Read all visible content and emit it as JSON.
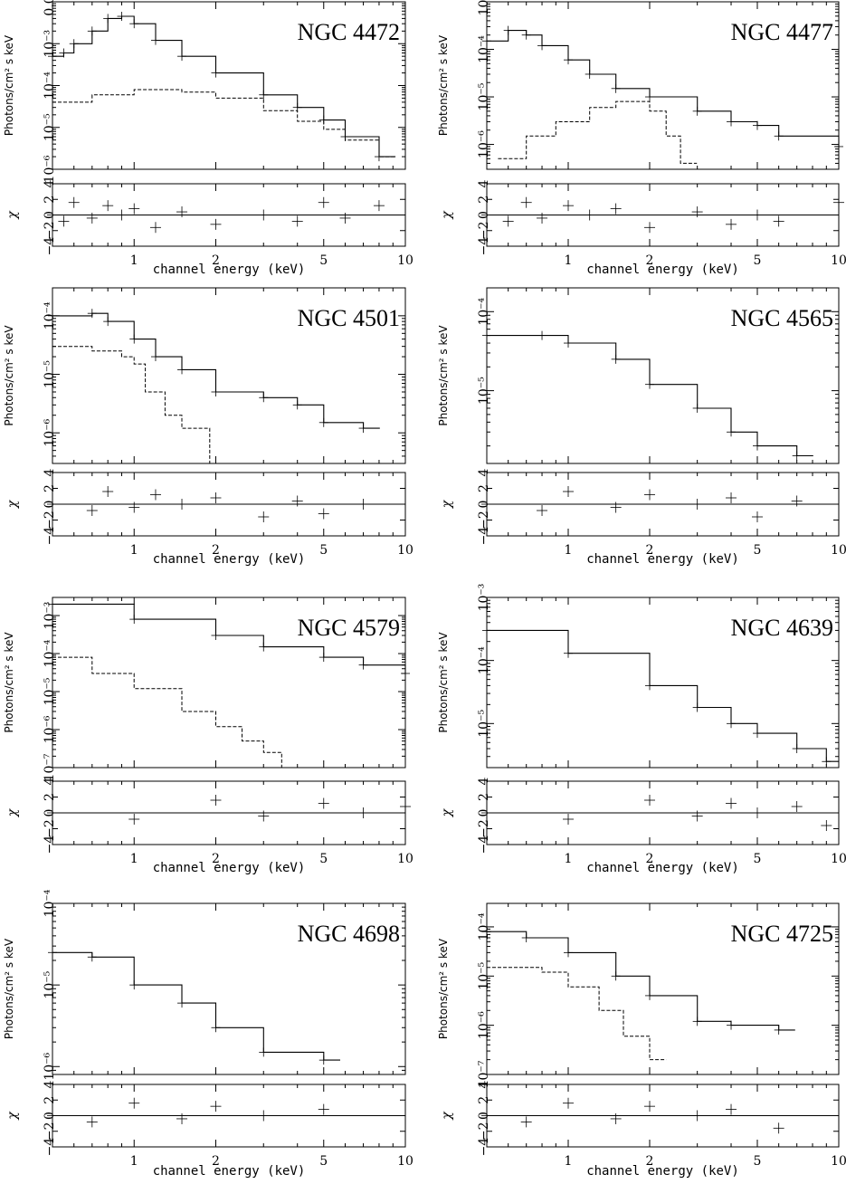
{
  "figure": {
    "xlabel": "channel energy (keV)",
    "ylabel": "Photons/cm² s keV",
    "resid_label": "χ",
    "x_ticks": [
      "1",
      "2",
      "5",
      "10"
    ],
    "resid_ticks": [
      "−4",
      "−2",
      "0",
      "2",
      "4"
    ]
  },
  "chart_data": [
    {
      "type": "line",
      "title": "NGC 4472",
      "x_scale": "log",
      "y_scale": "log",
      "xlim": [
        0.5,
        10
      ],
      "ylim": [
        1e-06,
        0.01
      ],
      "y_ticks": [
        "0.01",
        "10⁻³",
        "10⁻⁴",
        "10⁻⁵",
        "10⁻⁶"
      ],
      "resid_ylim": [
        -4,
        4
      ],
      "series": [
        {
          "values": [
            [
              0.5,
              0.0005
            ],
            [
              0.55,
              0.0006
            ],
            [
              0.6,
              0.001
            ],
            [
              0.7,
              0.002
            ],
            [
              0.8,
              0.004
            ],
            [
              0.9,
              0.0045
            ],
            [
              1.0,
              0.003
            ],
            [
              1.2,
              0.0012
            ],
            [
              1.5,
              0.0005
            ],
            [
              2.0,
              0.0002
            ],
            [
              3.0,
              6e-05
            ],
            [
              4.0,
              3e-05
            ],
            [
              5.0,
              1.5e-05
            ],
            [
              6.0,
              6e-06
            ],
            [
              8.0,
              2e-06
            ]
          ]
        },
        {
          "values": [
            [
              0.5,
              4e-05
            ],
            [
              0.7,
              6e-05
            ],
            [
              1.0,
              8e-05
            ],
            [
              1.5,
              7e-05
            ],
            [
              2.0,
              5e-05
            ],
            [
              3.0,
              2.5e-05
            ],
            [
              4.0,
              1.4e-05
            ],
            [
              5.0,
              9e-06
            ],
            [
              6.0,
              5e-06
            ],
            [
              8.0,
              2e-06
            ]
          ]
        }
      ]
    },
    {
      "type": "line",
      "title": "NGC 4477",
      "x_scale": "log",
      "y_scale": "log",
      "xlim": [
        0.5,
        10
      ],
      "ylim": [
        3e-07,
        0.001
      ],
      "y_ticks": [
        "10⁻³",
        "10⁻⁴",
        "10⁻⁵",
        "10⁻⁶"
      ],
      "resid_ylim": [
        -4,
        4
      ],
      "series": [
        {
          "values": [
            [
              0.5,
              0.00015
            ],
            [
              0.6,
              0.00025
            ],
            [
              0.7,
              0.0002
            ],
            [
              0.8,
              0.00012
            ],
            [
              1.0,
              6e-05
            ],
            [
              1.2,
              3e-05
            ],
            [
              1.5,
              1.5e-05
            ],
            [
              2.0,
              1e-05
            ],
            [
              3.0,
              5e-06
            ],
            [
              4.0,
              3e-06
            ],
            [
              5.0,
              2.5e-06
            ],
            [
              6.0,
              1.5e-06
            ],
            [
              10.0,
              9e-07
            ]
          ]
        },
        {
          "values": [
            [
              0.55,
              5e-07
            ],
            [
              0.7,
              1.5e-06
            ],
            [
              0.9,
              3e-06
            ],
            [
              1.2,
              6e-06
            ],
            [
              1.5,
              8e-06
            ],
            [
              1.8,
              8e-06
            ],
            [
              2.0,
              5e-06
            ],
            [
              2.3,
              1.5e-06
            ],
            [
              2.6,
              4e-07
            ]
          ]
        }
      ]
    },
    {
      "type": "line",
      "title": "NGC 4501",
      "x_scale": "log",
      "y_scale": "log",
      "xlim": [
        0.5,
        10
      ],
      "ylim": [
        3e-07,
        0.0003
      ],
      "y_ticks": [
        "10⁻⁴",
        "10⁻⁵",
        "10⁻⁶"
      ],
      "resid_ylim": [
        -4,
        4
      ],
      "series": [
        {
          "values": [
            [
              0.5,
              0.0001
            ],
            [
              0.7,
              0.00011
            ],
            [
              0.8,
              8e-05
            ],
            [
              1.0,
              4e-05
            ],
            [
              1.2,
              2e-05
            ],
            [
              1.5,
              1.2e-05
            ],
            [
              2.0,
              5e-06
            ],
            [
              3.0,
              4e-06
            ],
            [
              4.0,
              3e-06
            ],
            [
              5.0,
              1.5e-06
            ],
            [
              7.0,
              1.2e-06
            ]
          ]
        },
        {
          "values": [
            [
              0.5,
              3e-05
            ],
            [
              0.7,
              2.5e-05
            ],
            [
              0.9,
              2e-05
            ],
            [
              1.0,
              1.5e-05
            ],
            [
              1.1,
              5e-06
            ],
            [
              1.3,
              2e-06
            ],
            [
              1.5,
              1.2e-06
            ],
            [
              1.9,
              3e-07
            ]
          ]
        }
      ]
    },
    {
      "type": "line",
      "title": "NGC 4565",
      "x_scale": "log",
      "y_scale": "log",
      "xlim": [
        0.5,
        10
      ],
      "ylim": [
        1.2e-06,
        0.0002
      ],
      "y_ticks": [
        "10⁻⁴",
        "10⁻⁵"
      ],
      "resid_ylim": [
        -4,
        4
      ],
      "series": [
        {
          "values": [
            [
              0.5,
              5e-05
            ],
            [
              0.8,
              5e-05
            ],
            [
              1.0,
              4e-05
            ],
            [
              1.5,
              2.5e-05
            ],
            [
              2.0,
              1.2e-05
            ],
            [
              3.0,
              6e-06
            ],
            [
              4.0,
              3e-06
            ],
            [
              5.0,
              2e-06
            ],
            [
              7.0,
              1.5e-06
            ]
          ]
        }
      ]
    },
    {
      "type": "line",
      "title": "NGC 4579",
      "x_scale": "log",
      "y_scale": "log",
      "xlim": [
        0.5,
        10
      ],
      "ylim": [
        1e-07,
        0.003
      ],
      "y_ticks": [
        "10⁻³",
        "10⁻⁴",
        "10⁻⁵",
        "10⁻⁶",
        "10⁻⁷"
      ],
      "resid_ylim": [
        -4,
        4
      ],
      "series": [
        {
          "values": [
            [
              0.5,
              0.002
            ],
            [
              1.0,
              0.0008
            ],
            [
              2.0,
              0.0003
            ],
            [
              3.0,
              0.00015
            ],
            [
              5.0,
              8e-05
            ],
            [
              7.0,
              5e-05
            ],
            [
              10.0,
              3e-05
            ]
          ]
        },
        {
          "values": [
            [
              0.5,
              8e-05
            ],
            [
              0.7,
              3e-05
            ],
            [
              1.0,
              1.2e-05
            ],
            [
              1.5,
              3e-06
            ],
            [
              2.0,
              1.2e-06
            ],
            [
              2.5,
              5e-07
            ],
            [
              3.0,
              2.5e-07
            ],
            [
              3.5,
              1e-07
            ]
          ]
        }
      ]
    },
    {
      "type": "line",
      "title": "NGC 4639",
      "x_scale": "log",
      "y_scale": "log",
      "xlim": [
        0.5,
        10
      ],
      "ylim": [
        2e-06,
        0.001
      ],
      "y_ticks": [
        "10⁻³",
        "10⁻⁴",
        "10⁻⁵"
      ],
      "resid_ylim": [
        -4,
        4
      ],
      "series": [
        {
          "values": [
            [
              0.5,
              0.0003
            ],
            [
              1.0,
              0.00013
            ],
            [
              2.0,
              4e-05
            ],
            [
              3.0,
              1.8e-05
            ],
            [
              4.0,
              1e-05
            ],
            [
              5.0,
              7e-06
            ],
            [
              7.0,
              4e-06
            ],
            [
              9.0,
              2.5e-06
            ]
          ]
        }
      ]
    },
    {
      "type": "line",
      "title": "NGC 4698",
      "x_scale": "log",
      "y_scale": "log",
      "xlim": [
        0.5,
        10
      ],
      "ylim": [
        8e-07,
        0.0001
      ],
      "y_ticks": [
        "10⁻⁴",
        "10⁻⁵",
        "10⁻⁶"
      ],
      "resid_ylim": [
        -4,
        4
      ],
      "series": [
        {
          "values": [
            [
              0.5,
              2.5e-05
            ],
            [
              0.7,
              2.2e-05
            ],
            [
              1.0,
              1e-05
            ],
            [
              1.5,
              6e-06
            ],
            [
              2.0,
              3e-06
            ],
            [
              3.0,
              1.5e-06
            ],
            [
              5.0,
              1.2e-06
            ]
          ]
        }
      ]
    },
    {
      "type": "line",
      "title": "NGC 4725",
      "x_scale": "log",
      "y_scale": "log",
      "xlim": [
        0.5,
        10
      ],
      "ylim": [
        1e-07,
        0.0003
      ],
      "y_ticks": [
        "10⁻⁴",
        "10⁻⁵",
        "10⁻⁶",
        "10⁻⁷"
      ],
      "resid_ylim": [
        -4,
        4
      ],
      "series": [
        {
          "values": [
            [
              0.5,
              8e-05
            ],
            [
              0.7,
              6e-05
            ],
            [
              1.0,
              3e-05
            ],
            [
              1.5,
              1e-05
            ],
            [
              2.0,
              4e-06
            ],
            [
              3.0,
              1.2e-06
            ],
            [
              4.0,
              1e-06
            ],
            [
              6.0,
              8e-07
            ]
          ]
        },
        {
          "values": [
            [
              0.5,
              1.5e-05
            ],
            [
              0.8,
              1.2e-05
            ],
            [
              1.0,
              6e-06
            ],
            [
              1.3,
              2e-06
            ],
            [
              1.6,
              6e-07
            ],
            [
              2.0,
              2e-07
            ]
          ]
        }
      ]
    }
  ]
}
